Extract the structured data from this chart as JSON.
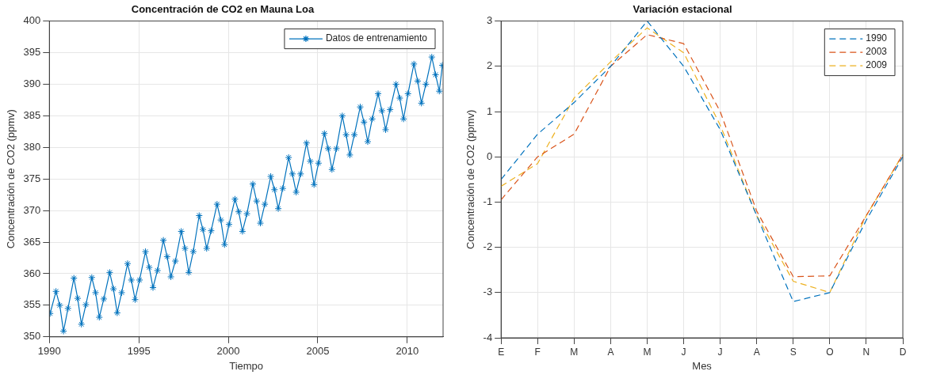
{
  "chart_data": [
    {
      "type": "line",
      "title": "Concentración de CO2 en Mauna Loa",
      "xlabel": "Tiempo",
      "ylabel": "Concentración de CO2 (ppmv)",
      "x": [
        1990.04,
        1990.37,
        1990.58,
        1990.79,
        1991.04,
        1991.37,
        1991.58,
        1991.79,
        1992.04,
        1992.37,
        1992.58,
        1992.79,
        1993.04,
        1993.37,
        1993.58,
        1993.79,
        1994.04,
        1994.37,
        1994.58,
        1994.79,
        1995.04,
        1995.37,
        1995.58,
        1995.79,
        1996.04,
        1996.37,
        1996.58,
        1996.79,
        1997.04,
        1997.37,
        1997.58,
        1997.79,
        1998.04,
        1998.37,
        1998.58,
        1998.79,
        1999.04,
        1999.37,
        1999.58,
        1999.79,
        2000.04,
        2000.37,
        2000.58,
        2000.79,
        2001.04,
        2001.37,
        2001.58,
        2001.79,
        2002.04,
        2002.37,
        2002.58,
        2002.79,
        2003.04,
        2003.37,
        2003.58,
        2003.79,
        2004.04,
        2004.37,
        2004.58,
        2004.79,
        2005.04,
        2005.37,
        2005.58,
        2005.79,
        2006.04,
        2006.37,
        2006.58,
        2006.79,
        2007.04,
        2007.37,
        2007.58,
        2007.79,
        2008.04,
        2008.37,
        2008.58,
        2008.79,
        2009.04,
        2009.37,
        2009.58,
        2009.79,
        2010.04,
        2010.37,
        2010.58,
        2010.79,
        2011.04,
        2011.37,
        2011.58,
        2011.79,
        2011.96
      ],
      "series": [
        {
          "name": "Datos de entrenamiento",
          "color": "#0072bd",
          "values": [
            353.7,
            357.2,
            355.0,
            350.9,
            354.5,
            359.3,
            356.1,
            352.0,
            355.1,
            359.4,
            357.0,
            353.1,
            356.0,
            360.2,
            357.6,
            353.8,
            357.0,
            361.6,
            359.0,
            355.9,
            359.0,
            363.5,
            361.0,
            357.8,
            360.5,
            365.3,
            362.7,
            359.5,
            362.0,
            366.7,
            364.0,
            360.2,
            363.5,
            369.2,
            367.0,
            364.0,
            366.8,
            371.0,
            368.5,
            364.6,
            367.8,
            371.8,
            369.8,
            366.7,
            369.5,
            374.2,
            371.5,
            368.0,
            371.0,
            375.4,
            373.3,
            370.3,
            373.5,
            378.4,
            375.8,
            372.9,
            375.8,
            380.7,
            377.8,
            374.1,
            377.5,
            382.2,
            379.8,
            376.5,
            379.8,
            385.0,
            382.0,
            378.8,
            382.0,
            386.4,
            384.0,
            380.9,
            384.5,
            388.5,
            385.8,
            382.8,
            386.0,
            390.0,
            387.8,
            384.5,
            388.5,
            393.2,
            390.5,
            387.0,
            390.0,
            394.3,
            391.5,
            388.9,
            393.0
          ]
        }
      ],
      "xlim": [
        1990,
        2012
      ],
      "xticks": [
        1990,
        1995,
        2000,
        2005,
        2010
      ],
      "ylim": [
        350,
        400
      ],
      "yticks": [
        350,
        355,
        360,
        365,
        370,
        375,
        380,
        385,
        390,
        395,
        400
      ],
      "grid": true,
      "legend": "top right",
      "marker": "cross",
      "line_style": "solid"
    },
    {
      "type": "line",
      "title": "Variación estacional",
      "xlabel": "Mes",
      "ylabel": "Concentración de CO2 (ppmv)",
      "categories": [
        "E",
        "F",
        "M",
        "A",
        "M",
        "J",
        "J",
        "A",
        "S",
        "O",
        "N",
        "D"
      ],
      "series": [
        {
          "name": "1990",
          "color": "#0072bd",
          "values": [
            -0.5,
            0.5,
            1.2,
            2.0,
            3.0,
            2.0,
            0.6,
            -1.3,
            -3.2,
            -3.0,
            -1.4,
            0.0
          ]
        },
        {
          "name": "2003",
          "color": "#d95319",
          "values": [
            -0.95,
            0.0,
            0.5,
            2.0,
            2.7,
            2.5,
            1.0,
            -1.2,
            -2.65,
            -2.63,
            -1.3,
            0.05
          ]
        },
        {
          "name": "2009",
          "color": "#edb120",
          "values": [
            -0.65,
            -0.15,
            1.3,
            2.1,
            2.85,
            2.3,
            0.7,
            -1.3,
            -2.75,
            -3.0,
            -1.3,
            0.05
          ]
        }
      ],
      "ylim": [
        -4,
        3
      ],
      "yticks": [
        -4,
        -3,
        -2,
        -1,
        0,
        1,
        2,
        3
      ],
      "grid": true,
      "legend": "top right",
      "marker": "none",
      "line_style": "dashed"
    }
  ]
}
